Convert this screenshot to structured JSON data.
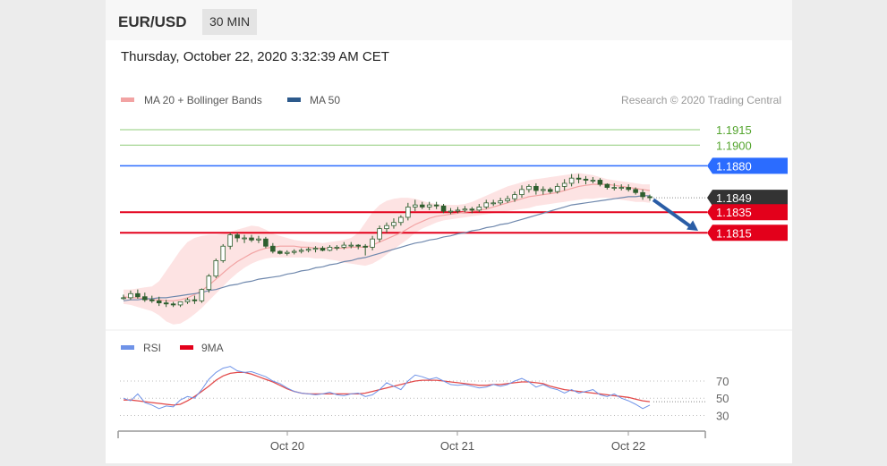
{
  "header": {
    "symbol": "EUR/USD",
    "interval": "30 MIN",
    "datetime": "Thursday, October 22, 2020 3:32:39 AM CET"
  },
  "legend": {
    "ma20_label": "MA 20 + Bollinger Bands",
    "ma50_label": "MA 50",
    "credit": "Research © 2020 Trading Central"
  },
  "colors": {
    "bg": "#ffffff",
    "candle": "#2e5e2e",
    "ma20": "#f2a3a3",
    "bollinger_fill": "#fde3e3",
    "ma50": "#6f88ad",
    "resistance": "#8fcc7a",
    "resistance_text": "#55a52f",
    "pivot": "#2b6cff",
    "support": "#e3001b",
    "current": "#333333",
    "arrow": "#2a5da6",
    "rsi": "#6f93e8",
    "rsi_ma": "#e34a4a",
    "grid": "#bbbbbb"
  },
  "chart_data": [
    {
      "type": "candlestick",
      "title": "EUR/USD 30 MIN",
      "x_tick_labels": [
        "Oct 20",
        "Oct 21",
        "Oct 22"
      ],
      "price_levels": [
        {
          "value": "1.1915",
          "role": "resistance"
        },
        {
          "value": "1.1900",
          "role": "resistance"
        },
        {
          "value": "1.1880",
          "role": "pivot"
        },
        {
          "value": "1.1849",
          "role": "current"
        },
        {
          "value": "1.1835",
          "role": "support"
        },
        {
          "value": "1.1815",
          "role": "support"
        }
      ],
      "ylim": [
        1.1725,
        1.1928
      ],
      "candles": {
        "open": [
          1.1752,
          1.1752,
          1.1756,
          1.1753,
          1.175,
          1.1749,
          1.1747,
          1.1746,
          1.1745,
          1.1748,
          1.175,
          1.1749,
          1.176,
          1.1773,
          1.1788,
          1.1802,
          1.1813,
          1.181,
          1.181,
          1.1808,
          1.1809,
          1.1802,
          1.1797,
          1.1795,
          1.1796,
          1.1797,
          1.1798,
          1.1799,
          1.18,
          1.1798,
          1.1801,
          1.1801,
          1.1803,
          1.1803,
          1.1802,
          1.1801,
          1.1809,
          1.1819,
          1.1822,
          1.1825,
          1.183,
          1.184,
          1.1842,
          1.184,
          1.1842,
          1.1841,
          1.1836,
          1.1836,
          1.1837,
          1.1838,
          1.1837,
          1.184,
          1.1844,
          1.1844,
          1.1846,
          1.1848,
          1.1852,
          1.1857,
          1.186,
          1.1856,
          1.1857,
          1.1855,
          1.186,
          1.1863,
          1.1868,
          1.1867,
          1.1866,
          1.1866,
          1.1862,
          1.1859,
          1.1859,
          1.1859,
          1.1857,
          1.1854,
          1.185
        ],
        "high": [
          1.1755,
          1.1759,
          1.176,
          1.1757,
          1.1754,
          1.1753,
          1.175,
          1.1748,
          1.1748,
          1.1752,
          1.1754,
          1.1761,
          1.1775,
          1.179,
          1.1804,
          1.1815,
          1.1815,
          1.1813,
          1.1813,
          1.1812,
          1.1811,
          1.1805,
          1.1798,
          1.1798,
          1.1799,
          1.18,
          1.1801,
          1.1802,
          1.1802,
          1.1803,
          1.1803,
          1.1806,
          1.1806,
          1.1804,
          1.1804,
          1.1812,
          1.1822,
          1.1825,
          1.1829,
          1.1832,
          1.1844,
          1.1847,
          1.1845,
          1.1845,
          1.1845,
          1.1843,
          1.1839,
          1.184,
          1.1841,
          1.184,
          1.1843,
          1.1847,
          1.1847,
          1.1849,
          1.1851,
          1.1855,
          1.1861,
          1.1862,
          1.1863,
          1.186,
          1.1859,
          1.1863,
          1.1867,
          1.1872,
          1.1872,
          1.187,
          1.1869,
          1.1868,
          1.1863,
          1.1863,
          1.1862,
          1.1862,
          1.1859,
          1.1857,
          1.1852
        ],
        "low": [
          1.175,
          1.175,
          1.1751,
          1.1748,
          1.1747,
          1.1744,
          1.1743,
          1.1743,
          1.1743,
          1.1746,
          1.1746,
          1.1747,
          1.1757,
          1.1771,
          1.1786,
          1.1799,
          1.1806,
          1.1805,
          1.1806,
          1.1805,
          1.18,
          1.1795,
          1.1794,
          1.1793,
          1.1794,
          1.1795,
          1.1796,
          1.1796,
          1.1797,
          1.1797,
          1.1798,
          1.1799,
          1.18,
          1.1799,
          1.1793,
          1.1798,
          1.1806,
          1.1815,
          1.1819,
          1.1822,
          1.1827,
          1.1836,
          1.1838,
          1.1837,
          1.1838,
          1.1834,
          1.1833,
          1.1834,
          1.1835,
          1.1834,
          1.1835,
          1.1838,
          1.1841,
          1.1842,
          1.1844,
          1.1845,
          1.1849,
          1.1854,
          1.1852,
          1.1852,
          1.1853,
          1.1853,
          1.1856,
          1.186,
          1.1863,
          1.1862,
          1.1863,
          1.186,
          1.1857,
          1.1856,
          1.1856,
          1.1855,
          1.1852,
          1.1847,
          1.1846
        ],
        "close": [
          1.1752,
          1.1756,
          1.1753,
          1.175,
          1.1749,
          1.1747,
          1.1746,
          1.1745,
          1.1748,
          1.175,
          1.1749,
          1.176,
          1.1773,
          1.1788,
          1.1802,
          1.1813,
          1.181,
          1.181,
          1.1808,
          1.1809,
          1.1802,
          1.1797,
          1.1795,
          1.1796,
          1.1797,
          1.1798,
          1.1799,
          1.18,
          1.1798,
          1.1801,
          1.1801,
          1.1803,
          1.1803,
          1.1802,
          1.1801,
          1.1809,
          1.1819,
          1.1822,
          1.1825,
          1.183,
          1.184,
          1.1842,
          1.184,
          1.1842,
          1.1841,
          1.1836,
          1.1836,
          1.1837,
          1.1838,
          1.1837,
          1.184,
          1.1844,
          1.1844,
          1.1846,
          1.1848,
          1.1852,
          1.1857,
          1.186,
          1.1856,
          1.1857,
          1.1855,
          1.186,
          1.1863,
          1.1868,
          1.1867,
          1.1866,
          1.1866,
          1.1862,
          1.1859,
          1.1859,
          1.1859,
          1.1857,
          1.1854,
          1.185,
          1.1849
        ]
      },
      "series": [
        {
          "name": "MA 20 + Bollinger Bands",
          "values": [
            1.1753,
            1.1752,
            1.1752,
            1.1751,
            1.175,
            1.175,
            1.1749,
            1.1749,
            1.175,
            1.1752,
            1.1755,
            1.1759,
            1.1764,
            1.177,
            1.1776,
            1.1782,
            1.1787,
            1.1791,
            1.1795,
            1.1798,
            1.18,
            1.1801,
            1.1802,
            1.1802,
            1.1802,
            1.1801,
            1.1801,
            1.18,
            1.18,
            1.18,
            1.18,
            1.18,
            1.1801,
            1.1801,
            1.1801,
            1.1803,
            1.1806,
            1.1809,
            1.1812,
            1.1815,
            1.1819,
            1.1823,
            1.1826,
            1.1829,
            1.1831,
            1.1832,
            1.1833,
            1.1834,
            1.1835,
            1.1836,
            1.1837,
            1.1838,
            1.184,
            1.1842,
            1.1844,
            1.1846,
            1.1848,
            1.185,
            1.1851,
            1.1852,
            1.1853,
            1.1854,
            1.1856,
            1.1858,
            1.186,
            1.1861,
            1.1862,
            1.1862,
            1.1862,
            1.1861,
            1.186,
            1.1859,
            1.1858,
            1.1857,
            1.1856
          ]
        },
        {
          "name": "MA 50",
          "values": [
            1.1749,
            1.175,
            1.175,
            1.1751,
            1.1751,
            1.1752,
            1.1752,
            1.1753,
            1.1754,
            1.1755,
            1.1756,
            1.1757,
            1.1759,
            1.176,
            1.1762,
            1.1764,
            1.1765,
            1.1767,
            1.1768,
            1.177,
            1.1771,
            1.1772,
            1.1773,
            1.1775,
            1.1776,
            1.1778,
            1.1779,
            1.1781,
            1.1782,
            1.1784,
            1.1785,
            1.1787,
            1.1788,
            1.179,
            1.1791,
            1.1793,
            1.1795,
            1.1797,
            1.1799,
            1.1801,
            1.1803,
            1.1805,
            1.1806,
            1.1808,
            1.1809,
            1.1811,
            1.1812,
            1.1814,
            1.1815,
            1.1817,
            1.1818,
            1.182,
            1.1821,
            1.1823,
            1.1824,
            1.1826,
            1.1828,
            1.183,
            1.1832,
            1.1834,
            1.1836,
            1.1838,
            1.184,
            1.1842,
            1.1843,
            1.1844,
            1.1845,
            1.1846,
            1.1847,
            1.1848,
            1.1849,
            1.185,
            1.185,
            1.1851,
            1.1851
          ]
        }
      ],
      "bollinger": {
        "upper": [
          1.176,
          1.176,
          1.1761,
          1.1762,
          1.1763,
          1.1768,
          1.1778,
          1.1788,
          1.1798,
          1.1806,
          1.181,
          1.1812,
          1.1813,
          1.1813,
          1.1814,
          1.1816,
          1.1818,
          1.182,
          1.1822,
          1.1821,
          1.1818,
          1.1814,
          1.1812,
          1.181,
          1.1808,
          1.1807,
          1.1806,
          1.1806,
          1.1805,
          1.1806,
          1.1807,
          1.1808,
          1.181,
          1.1815,
          1.1825,
          1.1835,
          1.1842,
          1.1846,
          1.1848,
          1.1849,
          1.1849,
          1.1848,
          1.1846,
          1.1844,
          1.1843,
          1.1842,
          1.1842,
          1.1842,
          1.1843,
          1.1845,
          1.1848,
          1.1851,
          1.1854,
          1.1857,
          1.186,
          1.1862,
          1.1864,
          1.1866,
          1.1867,
          1.1868,
          1.1869,
          1.187,
          1.1871,
          1.1872,
          1.1873,
          1.1872,
          1.1871,
          1.1869,
          1.1867,
          1.1866,
          1.1865,
          1.1864,
          1.1863,
          1.1862,
          1.1862
        ],
        "lower": [
          1.1746,
          1.1745,
          1.1743,
          1.1741,
          1.1739,
          1.1735,
          1.1729,
          1.1726,
          1.1727,
          1.1731,
          1.1736,
          1.1742,
          1.1749,
          1.1756,
          1.1763,
          1.177,
          1.1776,
          1.1781,
          1.1785,
          1.1788,
          1.179,
          1.1791,
          1.1791,
          1.1791,
          1.1791,
          1.1791,
          1.1791,
          1.179,
          1.179,
          1.1789,
          1.1788,
          1.1786,
          1.1785,
          1.1784,
          1.1783,
          1.1785,
          1.1789,
          1.1794,
          1.1799,
          1.1804,
          1.1809,
          1.1815,
          1.1819,
          1.1822,
          1.1825,
          1.1827,
          1.1828,
          1.1829,
          1.183,
          1.1831,
          1.1832,
          1.1833,
          1.1834,
          1.1835,
          1.1836,
          1.1837,
          1.1838,
          1.1839,
          1.1841,
          1.1842,
          1.1843,
          1.1844,
          1.1845,
          1.1846,
          1.1847,
          1.1848,
          1.1848,
          1.1849,
          1.1849,
          1.1848,
          1.1847,
          1.1846,
          1.1845,
          1.1845,
          1.1844
        ]
      },
      "projection": {
        "from": 1.1847,
        "to": 1.1817
      }
    },
    {
      "type": "line",
      "series": [
        {
          "name": "RSI",
          "values": [
            50,
            47,
            55,
            45,
            42,
            38,
            41,
            40,
            48,
            52,
            50,
            60,
            72,
            80,
            85,
            87,
            82,
            80,
            81,
            78,
            75,
            70,
            67,
            62,
            58,
            56,
            55,
            54,
            55,
            57,
            54,
            53,
            55,
            56,
            52,
            54,
            60,
            68,
            64,
            60,
            70,
            77,
            75,
            72,
            74,
            70,
            66,
            65,
            66,
            64,
            62,
            63,
            66,
            64,
            66,
            70,
            73,
            69,
            63,
            66,
            62,
            60,
            56,
            60,
            56,
            58,
            60,
            54,
            52,
            55,
            50,
            47,
            43,
            38,
            42
          ]
        },
        {
          "name": "9MA",
          "values": [
            48,
            48,
            47,
            46,
            45,
            44,
            43,
            42,
            43,
            47,
            52,
            58,
            64,
            71,
            76,
            79,
            80,
            80,
            78,
            75,
            72,
            69,
            65,
            61,
            58,
            56,
            55,
            55,
            55,
            55,
            55,
            55,
            55,
            55,
            56,
            58,
            60,
            62,
            64,
            66,
            68,
            70,
            71,
            71,
            71,
            70,
            69,
            68,
            67,
            66,
            65,
            65,
            66,
            66,
            67,
            68,
            69,
            69,
            68,
            67,
            64,
            62,
            60,
            59,
            58,
            57,
            56,
            55,
            54,
            53,
            52,
            51,
            49,
            47,
            46
          ]
        }
      ],
      "y_tick_labels": [
        "70",
        "50",
        "30"
      ],
      "ylim": [
        18,
        95
      ]
    }
  ]
}
